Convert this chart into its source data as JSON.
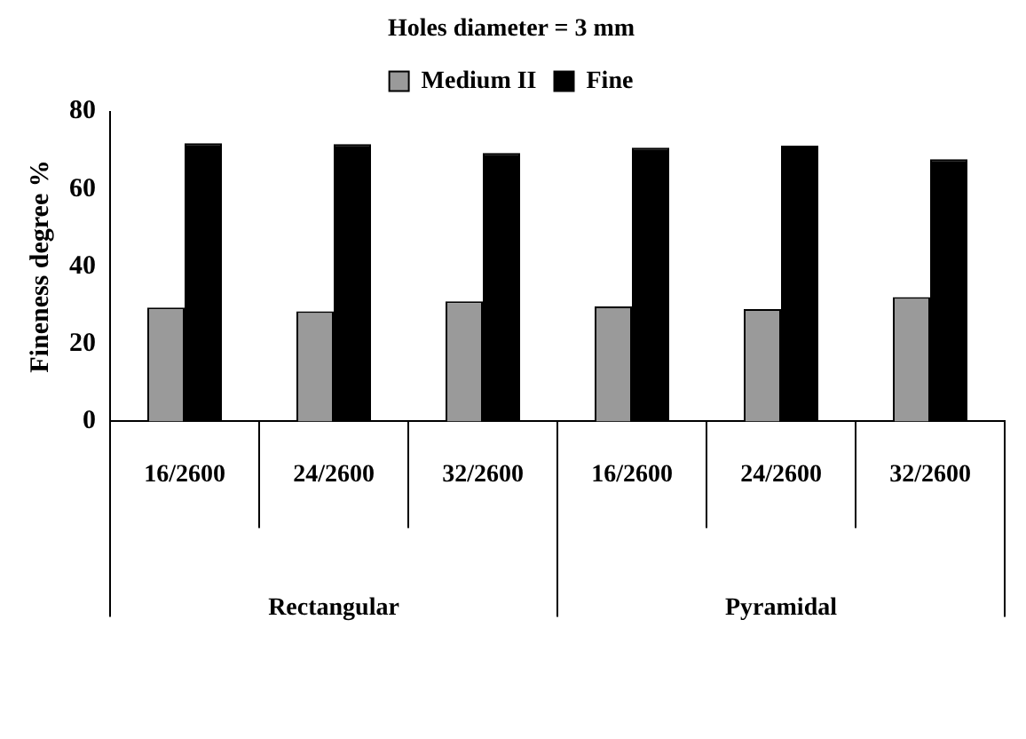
{
  "chart_data": {
    "type": "bar",
    "title": "Holes diameter = 3 mm",
    "ylabel": "Fineness degree %",
    "categories": [
      "16/2600",
      "24/2600",
      "32/2600",
      "16/2600",
      "24/2600",
      "32/2600"
    ],
    "series": [
      {
        "name": "Medium II",
        "color": "#9a9a9a",
        "values": [
          29.4,
          28.4,
          31.0,
          29.7,
          29.0,
          32.1
        ]
      },
      {
        "name": "Fine",
        "color": "#000000",
        "values": [
          71.8,
          71.6,
          69.3,
          70.7,
          71.2,
          67.7
        ]
      }
    ],
    "annotations": [
      "Rectangular",
      "Pyramidal"
    ],
    "ylim": [
      0,
      80
    ],
    "yticks": [
      0,
      20,
      40,
      60,
      80
    ],
    "grid": false,
    "legend": "top"
  }
}
